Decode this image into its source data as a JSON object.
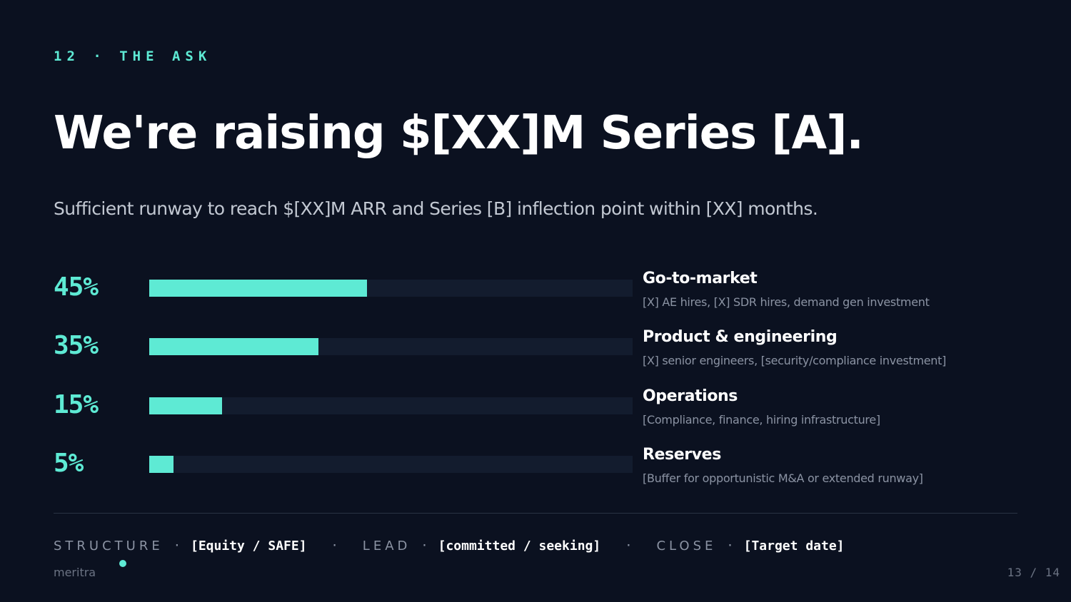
{
  "slide": {
    "eyebrow": "12 · THE ASK",
    "title": "We're raising $[XX]M Series [A].",
    "subtitle": "Sufficient runway to reach $[XX]M ARR and Series [B] inflection point within [XX] months."
  },
  "allocation": [
    {
      "percent_label": "45%",
      "value": 45,
      "category": "Go-to-market",
      "description": "[X] AE hires, [X] SDR hires, demand gen investment"
    },
    {
      "percent_label": "35%",
      "value": 35,
      "category": "Product & engineering",
      "description": "[X] senior engineers, [security/compliance investment]"
    },
    {
      "percent_label": "15%",
      "value": 15,
      "category": "Operations",
      "description": "[Compliance, finance, hiring infrastructure]"
    },
    {
      "percent_label": "5%",
      "value": 5,
      "category": "Reserves",
      "description": "[Buffer for opportunistic M&A or extended runway]"
    }
  ],
  "terms": {
    "structure_label": "STRUCTURE",
    "structure_value": "[Equity / SAFE]",
    "lead_label": "LEAD",
    "lead_value": "[committed / seeking]",
    "close_label": "CLOSE",
    "close_value": "[Target date]",
    "separator": "·"
  },
  "footer": {
    "brand": "meritra",
    "page": "13 / 14"
  },
  "colors": {
    "background": "#0b1120",
    "accent": "#5eead4",
    "track": "#131c2e"
  }
}
